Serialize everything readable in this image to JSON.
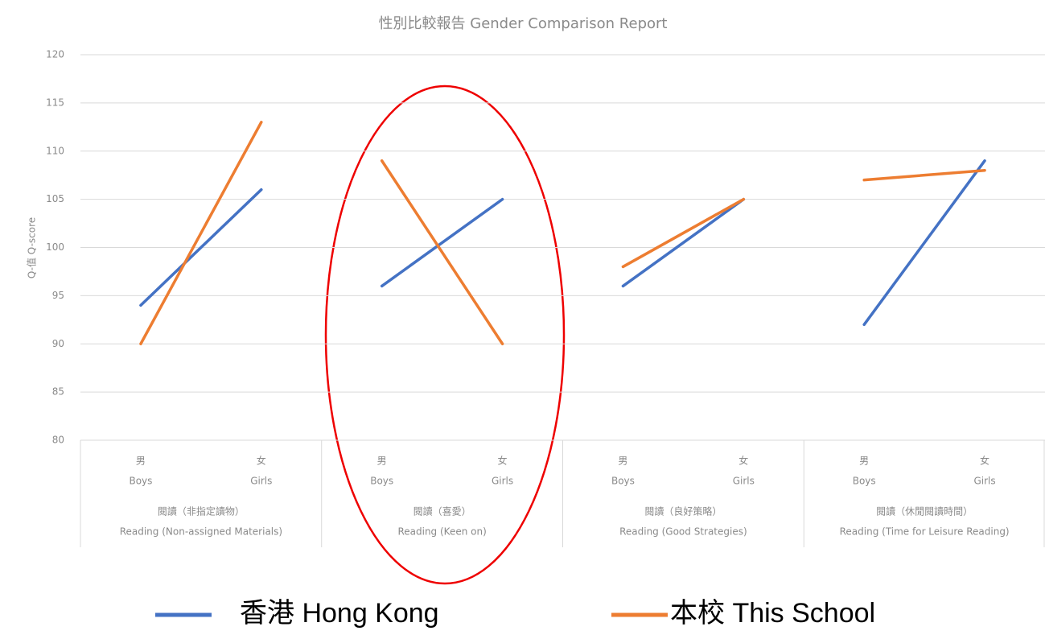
{
  "chart_data": {
    "type": "line",
    "title": "性別比較報告 Gender Comparison Report",
    "y_label": "Q-值 Q-score",
    "categories": [
      "Boys",
      "Girls",
      "Boys",
      "Girls",
      "Boys",
      "Girls",
      "Boys",
      "Girls"
    ],
    "categories_zh": [
      "男",
      "女",
      "男",
      "女",
      "男",
      "女",
      "男",
      "女"
    ],
    "groups": [
      "Reading (Non-assigned Materials)",
      "Reading (Keen on)",
      "Reading (Good Strategies)",
      "Reading (Time for Leisure Reading)"
    ],
    "groups_zh": [
      "閱讀（非指定讀物）",
      "閱讀（喜愛）",
      "閱讀（良好策略）",
      "閱讀（休閒閱讀時間）"
    ],
    "series": [
      {
        "name": "香港 Hong Kong",
        "color": "#4472c4",
        "values": [
          94,
          106,
          96,
          105,
          96,
          105,
          92,
          109
        ]
      },
      {
        "name": "本校 This School",
        "color": "#ed7d31",
        "values": [
          90,
          113,
          109,
          90,
          98,
          105,
          107,
          108
        ]
      }
    ],
    "ylim": [
      80,
      120
    ],
    "yticks": [
      80,
      85,
      90,
      95,
      100,
      105,
      110,
      115,
      120
    ],
    "grid": true
  }
}
